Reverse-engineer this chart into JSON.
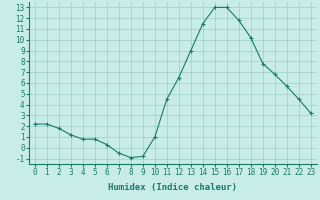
{
  "x": [
    0,
    1,
    2,
    3,
    4,
    5,
    6,
    7,
    8,
    9,
    10,
    11,
    12,
    13,
    14,
    15,
    16,
    17,
    18,
    19,
    20,
    21,
    22,
    23
  ],
  "y": [
    2.2,
    2.2,
    1.8,
    1.2,
    0.8,
    0.8,
    0.3,
    -0.5,
    -0.9,
    -0.8,
    1.0,
    4.5,
    6.5,
    9.0,
    11.5,
    13.0,
    13.0,
    11.8,
    10.2,
    7.8,
    6.8,
    5.7,
    4.5,
    3.2
  ],
  "xlabel": "Humidex (Indice chaleur)",
  "ylabel": "",
  "xlim": [
    -0.5,
    23.5
  ],
  "ylim": [
    -1.5,
    13.5
  ],
  "yticks": [
    -1,
    0,
    1,
    2,
    3,
    4,
    5,
    6,
    7,
    8,
    9,
    10,
    11,
    12,
    13
  ],
  "xticks": [
    0,
    1,
    2,
    3,
    4,
    5,
    6,
    7,
    8,
    9,
    10,
    11,
    12,
    13,
    14,
    15,
    16,
    17,
    18,
    19,
    20,
    21,
    22,
    23
  ],
  "line_color": "#1a7a6a",
  "marker": "+",
  "bg_color": "#c8ece8",
  "grid_color": "#9eccc7",
  "label_fontsize": 6.5,
  "tick_fontsize": 5.5
}
